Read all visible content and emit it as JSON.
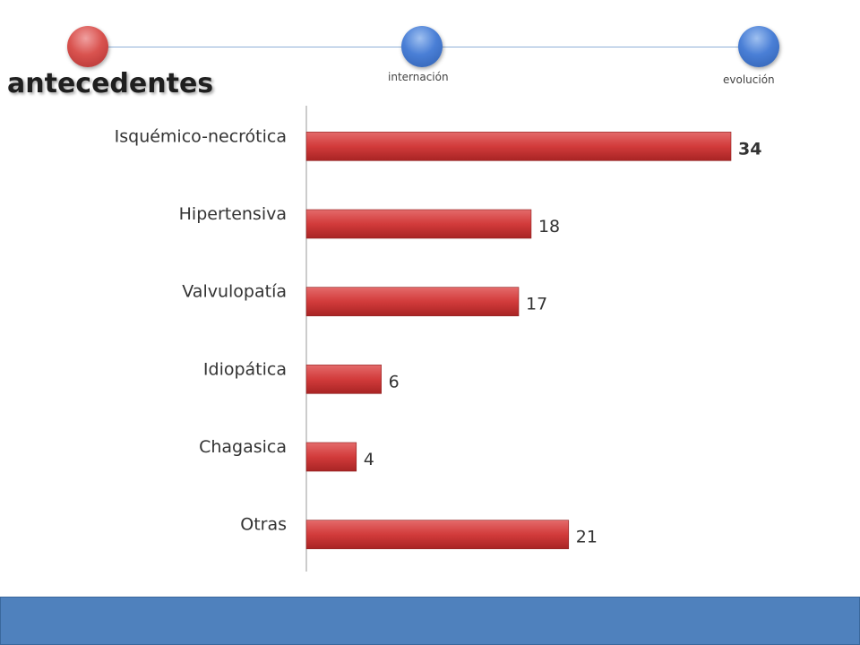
{
  "header": {
    "steps": [
      {
        "label": "antecedentes",
        "active": true
      },
      {
        "label": "internación",
        "active": false
      },
      {
        "label": "evolución",
        "active": false
      }
    ]
  },
  "colors": {
    "active_node": "#d9534f",
    "inactive_node": "#4a7fd6",
    "bar": "#d23b3b",
    "footer": "#4f81bd"
  },
  "chart_data": {
    "type": "bar",
    "orientation": "horizontal",
    "categories": [
      "Isquémico-necrótica",
      "Hipertensiva",
      "Valvulopatía",
      "Idiopática",
      "Chagasica",
      "Otras"
    ],
    "values": [
      34,
      18,
      17,
      6,
      4,
      21
    ],
    "data_labels": [
      "34",
      "18",
      "17",
      "6",
      "4",
      "21"
    ],
    "title": "",
    "xlabel": "",
    "ylabel": "",
    "xlim": [
      0,
      34
    ],
    "grid": false,
    "legend": "none"
  }
}
